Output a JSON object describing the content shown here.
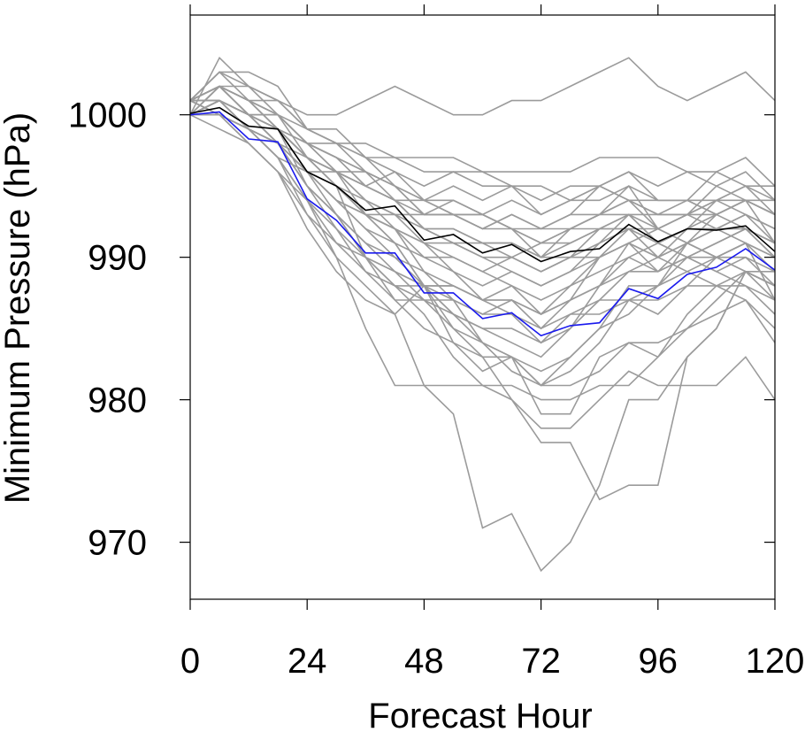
{
  "chart_data": {
    "type": "line",
    "xlabel": "Forecast Hour",
    "ylabel": "Minimum Pressure (hPa)",
    "xlim": [
      0,
      120
    ],
    "ylim": [
      966,
      1007
    ],
    "xticks": [
      0,
      24,
      48,
      72,
      96,
      120
    ],
    "yticks": [
      970,
      980,
      990,
      1000
    ],
    "x": [
      0,
      6,
      12,
      18,
      24,
      30,
      36,
      42,
      48,
      54,
      60,
      66,
      72,
      78,
      84,
      90,
      96,
      102,
      108,
      114,
      120
    ],
    "ensemble_color": "#9b9b9b",
    "highlight_series": [
      {
        "color": "#000000",
        "values": [
          1000.1,
          1000.5,
          999.2,
          999.0,
          996.0,
          995.0,
          993.3,
          993.6,
          991.2,
          991.6,
          990.3,
          990.9,
          989.7,
          990.4,
          990.6,
          992.3,
          991.1,
          992.0,
          991.9,
          992.2,
          990.4
        ]
      },
      {
        "color": "#1a1aee",
        "values": [
          1000.0,
          1000.2,
          998.3,
          998.1,
          994.1,
          992.6,
          990.3,
          990.3,
          987.5,
          987.5,
          985.7,
          986.1,
          984.5,
          985.2,
          985.4,
          987.8,
          987.1,
          988.8,
          989.3,
          990.6,
          989.1
        ]
      }
    ],
    "ensemble": [
      [
        1001,
        1002,
        1001,
        1001,
        1000,
        1000,
        1001,
        1002,
        1001,
        1000,
        1000,
        1001,
        1001,
        1002,
        1003,
        1004,
        1002,
        1001,
        1002,
        1003,
        1001
      ],
      [
        1000,
        1004,
        1002,
        1000,
        998,
        996,
        993,
        991,
        988,
        985,
        983,
        980,
        977,
        977,
        973,
        974,
        974,
        983,
        985,
        989,
        988
      ],
      [
        1001,
        1003,
        1003,
        1002,
        999,
        999,
        997,
        995,
        993,
        993,
        992,
        993,
        992,
        993,
        995,
        996,
        994,
        994,
        996,
        995,
        993
      ],
      [
        1001,
        1002,
        1000,
        998,
        997,
        995,
        993,
        992,
        990,
        989,
        987,
        988,
        986,
        987,
        990,
        992,
        990,
        992,
        994,
        993,
        991
      ],
      [
        1000,
        1001,
        999,
        997,
        993,
        990,
        988,
        986,
        981,
        979,
        971,
        972,
        968,
        970,
        974,
        980,
        980,
        983,
        985,
        989,
        988
      ],
      [
        1000,
        1002,
        1001,
        1000,
        998,
        997,
        995,
        994,
        992,
        992,
        991,
        990,
        991,
        992,
        993,
        995,
        992,
        993,
        995,
        996,
        994
      ],
      [
        1001,
        1000,
        999,
        998,
        996,
        994,
        992,
        990,
        988,
        986,
        985,
        984,
        983,
        985,
        988,
        990,
        989,
        991,
        992,
        993,
        992
      ],
      [
        1000,
        1001,
        1000,
        999,
        997,
        996,
        994,
        992,
        989,
        987,
        984,
        982,
        981,
        982,
        984,
        987,
        988,
        990,
        991,
        992,
        990
      ],
      [
        1001,
        1002,
        1001,
        1000,
        997,
        995,
        990,
        988,
        987,
        987,
        986,
        987,
        985,
        987,
        988,
        991,
        989,
        990,
        990,
        991,
        989
      ],
      [
        1000,
        1001,
        1000,
        998,
        995,
        993,
        991,
        989,
        987,
        985,
        984,
        983,
        982,
        983,
        985,
        988,
        988,
        989,
        990,
        991,
        987
      ],
      [
        1001,
        1003,
        1001,
        999,
        996,
        994,
        993,
        992,
        991,
        990,
        989,
        988,
        987,
        988,
        989,
        990,
        991,
        990,
        989,
        988,
        986
      ],
      [
        1001,
        1001,
        1000,
        999,
        998,
        997,
        996,
        995,
        994,
        993,
        993,
        992,
        991,
        992,
        993,
        994,
        994,
        994,
        994,
        995,
        995
      ],
      [
        1000,
        1000,
        999,
        998,
        996,
        996,
        995,
        996,
        994,
        995,
        994,
        995,
        993,
        994,
        995,
        994,
        993,
        994,
        993,
        994,
        993
      ],
      [
        1000,
        1002,
        1000,
        998,
        995,
        993,
        990,
        987,
        985,
        984,
        982,
        983,
        981,
        981,
        982,
        984,
        983,
        985,
        987,
        989,
        989
      ],
      [
        1001,
        1000,
        998,
        996,
        994,
        992,
        990,
        988,
        986,
        983,
        981,
        980,
        978,
        978,
        980,
        982,
        981,
        981,
        981,
        983,
        980
      ],
      [
        1000,
        1001,
        999,
        997,
        994,
        990,
        985,
        981,
        981,
        981,
        981,
        981,
        980,
        980,
        981,
        981,
        983,
        986,
        988,
        989,
        988
      ],
      [
        1001,
        1002,
        1000,
        999,
        998,
        998,
        997,
        997,
        997,
        997,
        996,
        996,
        996,
        996,
        997,
        997,
        997,
        996,
        995,
        994,
        993
      ],
      [
        1000,
        999,
        998,
        996,
        992,
        989,
        987,
        986,
        988,
        988,
        987,
        986,
        984,
        986,
        987,
        987,
        986,
        988,
        990,
        991,
        990
      ],
      [
        1000,
        1001,
        1000,
        1000,
        998,
        997,
        996,
        994,
        992,
        991,
        990,
        989,
        988,
        989,
        990,
        991,
        992,
        991,
        990,
        989,
        987
      ],
      [
        1001,
        1002,
        1002,
        1001,
        999,
        998,
        998,
        997,
        996,
        996,
        995,
        995,
        994,
        995,
        995,
        994,
        992,
        991,
        990,
        990,
        989
      ],
      [
        1000,
        1001,
        1000,
        999,
        997,
        995,
        993,
        991,
        988,
        984,
        983,
        983,
        979,
        979,
        983,
        984,
        984,
        985,
        986,
        987,
        984
      ],
      [
        1001,
        1000,
        999,
        998,
        996,
        993,
        990,
        989,
        988,
        986,
        984,
        983,
        981,
        983,
        985,
        986,
        988,
        991,
        993,
        994,
        993
      ],
      [
        1000,
        1002,
        1001,
        1000,
        998,
        996,
        995,
        994,
        993,
        994,
        993,
        992,
        990,
        992,
        993,
        993,
        991,
        992,
        992,
        993,
        992
      ],
      [
        1001,
        1001,
        1000,
        998,
        996,
        995,
        994,
        993,
        993,
        993,
        992,
        993,
        992,
        992,
        992,
        992,
        992,
        993,
        993,
        992,
        991
      ],
      [
        1000,
        1000,
        999,
        997,
        994,
        991,
        990,
        989,
        988,
        987,
        986,
        986,
        985,
        986,
        986,
        987,
        987,
        988,
        988,
        988,
        987
      ],
      [
        1001,
        1002,
        1001,
        999,
        997,
        996,
        994,
        993,
        991,
        989,
        988,
        989,
        988,
        989,
        991,
        993,
        991,
        992,
        993,
        994,
        991
      ],
      [
        1000,
        1001,
        1000,
        1000,
        999,
        998,
        997,
        996,
        995,
        996,
        996,
        995,
        995,
        994,
        994,
        995,
        994,
        994,
        993,
        994,
        994
      ],
      [
        1001,
        1002,
        1001,
        999,
        995,
        993,
        991,
        990,
        989,
        988,
        987,
        987,
        986,
        988,
        990,
        991,
        990,
        991,
        992,
        992,
        990
      ],
      [
        1000,
        1001,
        999,
        997,
        996,
        994,
        992,
        991,
        990,
        990,
        989,
        990,
        989,
        990,
        991,
        992,
        991,
        990,
        989,
        990,
        988
      ],
      [
        1000,
        1002,
        1000,
        999,
        997,
        996,
        996,
        995,
        993,
        993,
        992,
        992,
        991,
        991,
        992,
        993,
        993,
        993,
        994,
        995,
        994
      ],
      [
        1001,
        1001,
        999,
        998,
        995,
        992,
        989,
        987,
        987,
        986,
        985,
        985,
        984,
        985,
        987,
        989,
        989,
        990,
        991,
        992,
        991
      ],
      [
        1000,
        1000,
        998,
        996,
        993,
        991,
        989,
        988,
        988,
        988,
        987,
        987,
        986,
        987,
        988,
        989,
        990,
        989,
        988,
        987,
        985
      ],
      [
        1001,
        1003,
        1002,
        1001,
        999,
        998,
        996,
        995,
        994,
        994,
        993,
        994,
        993,
        994,
        995,
        996,
        995,
        996,
        996,
        997,
        995
      ],
      [
        1000,
        1001,
        1000,
        998,
        996,
        995,
        993,
        992,
        991,
        991,
        990,
        990,
        989,
        990,
        992,
        993,
        992,
        993,
        994,
        994,
        993
      ],
      [
        1001,
        1002,
        1000,
        999,
        997,
        996,
        995,
        994,
        994,
        993,
        993,
        992,
        992,
        993,
        993,
        994,
        993,
        993,
        992,
        992,
        991
      ],
      [
        1000,
        1000,
        999,
        998,
        996,
        994,
        993,
        993,
        992,
        992,
        991,
        991,
        990,
        991,
        992,
        992,
        991,
        992,
        992,
        991,
        990
      ],
      [
        1001,
        1001,
        1000,
        1000,
        998,
        997,
        995,
        994,
        992,
        991,
        991,
        991,
        990,
        990,
        990,
        991,
        990,
        991,
        990,
        989,
        988
      ]
    ]
  }
}
